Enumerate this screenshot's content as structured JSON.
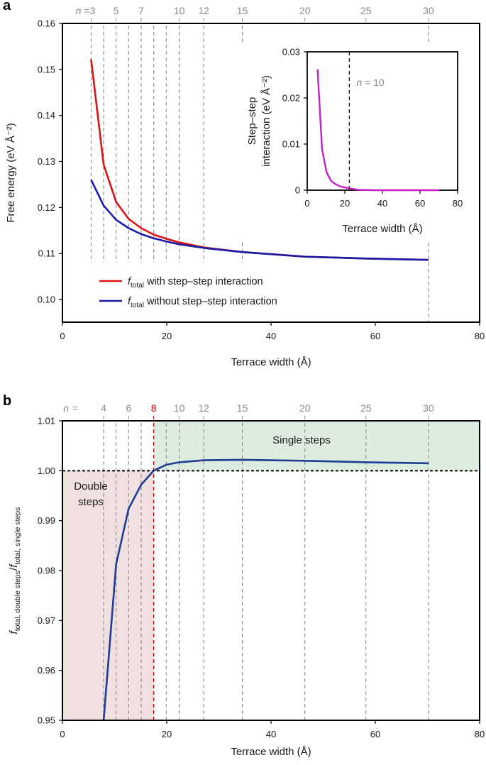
{
  "panel_labels": {
    "a": "a",
    "b": "b"
  },
  "colors": {
    "with_interaction": "#e01010",
    "without_interaction": "#1a1aa8",
    "ratio_line": "#1f3c96",
    "inset_line": "#c81ec8",
    "double_region": "#f1e0e0",
    "single_region": "#dcecdf",
    "critical_n": "#c00000",
    "guide": "#8a8a8a"
  },
  "chart_data": [
    {
      "id": "panel-a",
      "type": "line",
      "title": "",
      "xlabel": "Terrace width (Å)",
      "ylabel": "Free energy (eV Å⁻²)",
      "xlim": [
        0,
        80
      ],
      "ylim": [
        0.095,
        0.16
      ],
      "x_ticks": [
        0,
        20,
        40,
        60,
        80
      ],
      "y_ticks": [
        0.1,
        0.11,
        0.12,
        0.13,
        0.14,
        0.15,
        0.16
      ],
      "y_tick_labels": [
        "0.10",
        "0.11",
        "0.12",
        "0.13",
        "0.14",
        "0.15",
        "0.16"
      ],
      "n_prefix": "n =",
      "n_markers": [
        {
          "n": "3",
          "x": 5.5
        },
        {
          "n": "5",
          "x": 10.3
        },
        {
          "n": "7",
          "x": 15.1
        },
        {
          "n": "10",
          "x": 22.4
        },
        {
          "n": "12",
          "x": 27.1
        },
        {
          "n": "15",
          "x": 34.5
        },
        {
          "n": "20",
          "x": 46.5
        },
        {
          "n": "25",
          "x": 58.2
        },
        {
          "n": "30",
          "x": 70.2
        }
      ],
      "guide_lines_x": [
        5.5,
        7.9,
        10.3,
        12.7,
        15.1,
        17.5,
        19.9,
        22.4,
        27.1,
        34.5,
        70.2
      ],
      "series": [
        {
          "name": "with step–step interaction",
          "legend_symbol": "f",
          "legend_sub": "total",
          "legend_text": "with step–step interaction",
          "x": [
            5.5,
            7.9,
            10.3,
            12.7,
            15.1,
            17.5,
            19.9,
            22.4,
            27.1,
            34.5,
            46.5,
            58.2,
            70.2
          ],
          "y": [
            0.1522,
            0.1293,
            0.1212,
            0.1175,
            0.1155,
            0.1141,
            0.1132,
            0.1124,
            0.1113,
            0.1103,
            0.1093,
            0.1089,
            0.1086
          ]
        },
        {
          "name": "without step–step interaction",
          "legend_symbol": "f",
          "legend_sub": "total",
          "legend_text": "without step–step interaction",
          "x": [
            5.5,
            7.9,
            10.3,
            12.7,
            15.1,
            17.5,
            19.9,
            22.4,
            27.1,
            34.5,
            46.5,
            58.2,
            70.2
          ],
          "y": [
            0.126,
            0.1204,
            0.1173,
            0.1155,
            0.1142,
            0.1133,
            0.1126,
            0.112,
            0.1112,
            0.1103,
            0.1093,
            0.1089,
            0.1086
          ]
        }
      ]
    },
    {
      "id": "panel-a-inset",
      "type": "line",
      "xlabel": "Terrace width (Å)",
      "ylabel_line1": "Step–step",
      "ylabel_line2": "interaction (eV Å⁻²)",
      "xlim": [
        0,
        80
      ],
      "ylim": [
        0,
        0.03
      ],
      "x_ticks": [
        0,
        20,
        40,
        60,
        80
      ],
      "y_ticks": [
        0,
        0.01,
        0.02,
        0.03
      ],
      "y_tick_labels": [
        "0",
        "0.01",
        "0.02",
        "0.03"
      ],
      "marker_x": 22.4,
      "marker_label": "n = 10",
      "series": [
        {
          "name": "step–step interaction",
          "x": [
            5.5,
            7.9,
            10.3,
            12.7,
            15.1,
            17.5,
            19.9,
            22.4,
            27.1,
            34.5,
            46.5,
            58.2,
            70.2
          ],
          "y": [
            0.0262,
            0.0089,
            0.0039,
            0.002,
            0.0013,
            0.0008,
            0.0006,
            0.0004,
            0.0001,
            0.0,
            0.0,
            0.0,
            0.0
          ]
        }
      ]
    },
    {
      "id": "panel-b",
      "type": "line",
      "title": "",
      "xlabel": "Terrace width (Å)",
      "ylabel_main": "f",
      "ylabel_sub1": "total, double steps",
      "ylabel_mid": "/f",
      "ylabel_sub2": "total, single steps",
      "xlim": [
        0,
        80
      ],
      "ylim": [
        0.95,
        1.01
      ],
      "x_ticks": [
        0,
        20,
        40,
        60,
        80
      ],
      "y_ticks": [
        0.95,
        0.96,
        0.97,
        0.98,
        0.99,
        1.0,
        1.01
      ],
      "y_tick_labels": [
        "0.95",
        "0.96",
        "0.97",
        "0.98",
        "0.99",
        "1.00",
        "1.01"
      ],
      "reference_y": 1.0,
      "n_prefix": "n =",
      "n_markers": [
        {
          "n": "4",
          "x": 7.9
        },
        {
          "n": "6",
          "x": 12.7
        },
        {
          "n": "8",
          "x": 17.5,
          "critical": true
        },
        {
          "n": "10",
          "x": 22.4
        },
        {
          "n": "12",
          "x": 27.1
        },
        {
          "n": "15",
          "x": 34.5
        },
        {
          "n": "20",
          "x": 46.5
        },
        {
          "n": "25",
          "x": 58.2
        },
        {
          "n": "30",
          "x": 70.2
        }
      ],
      "guide_lines_x": [
        7.9,
        10.3,
        12.7,
        15.1,
        17.5,
        19.9,
        22.4,
        27.1,
        34.5,
        46.5,
        58.2,
        70.2
      ],
      "critical_x": 17.5,
      "regions": [
        {
          "label_line1": "Double",
          "label_line2": "steps",
          "x_from": 0,
          "x_to": 17.5,
          "y_from": 0.95,
          "y_to": 1.0
        },
        {
          "label_line1": "Single steps",
          "x_from": 17.5,
          "x_to": 80,
          "y_from": 1.0,
          "y_to": 1.01
        }
      ],
      "series": [
        {
          "name": "ratio",
          "x": [
            7.9,
            10.3,
            12.7,
            15.1,
            17.5,
            19.9,
            22.4,
            27.1,
            34.5,
            46.5,
            58.2,
            70.2
          ],
          "y": [
            0.95,
            0.9813,
            0.9924,
            0.9972,
            1.0,
            1.0012,
            1.0017,
            1.0021,
            1.0022,
            1.002,
            1.0017,
            1.0015
          ]
        }
      ]
    }
  ]
}
